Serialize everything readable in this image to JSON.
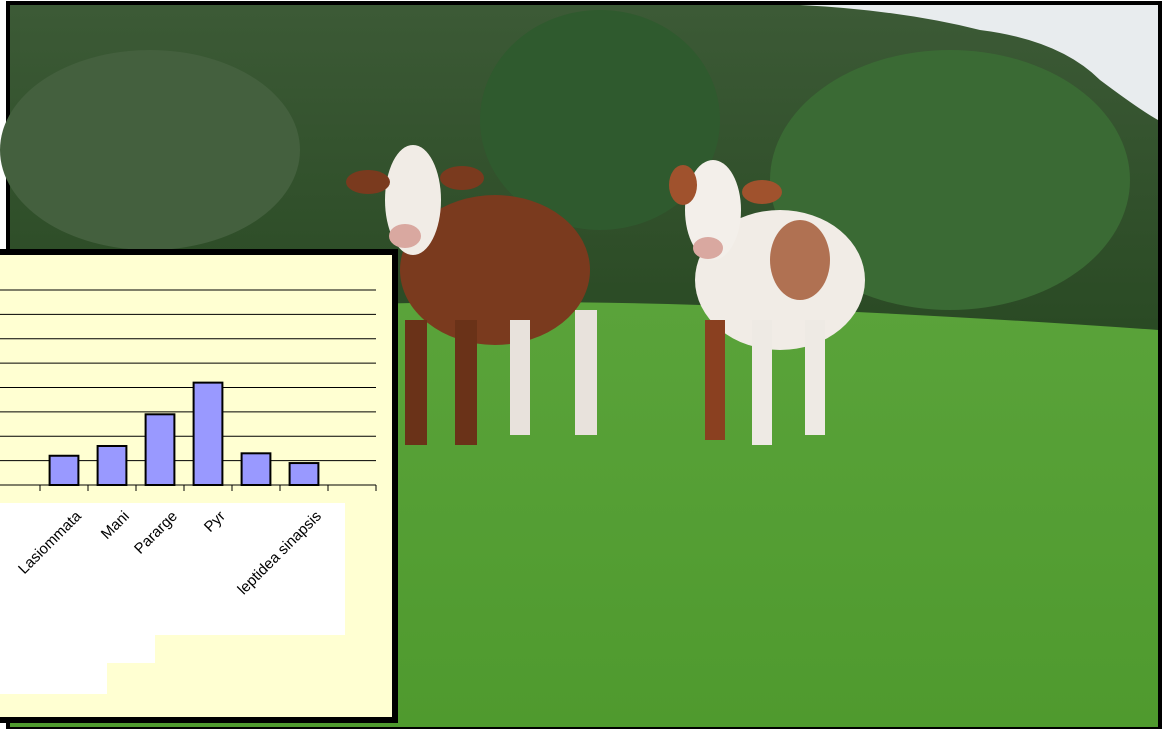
{
  "chart_data": {
    "type": "bar",
    "categories": [
      "Lasiommata",
      "Mani",
      "Pararge",
      "Pyr",
      null,
      "leptidea sinapsis"
    ],
    "values": [
      1.2,
      1.6,
      2.9,
      4.2,
      1.3,
      0.9
    ],
    "color": "#9999ff",
    "ylim": [
      0,
      8
    ],
    "yticks": [
      0,
      1,
      2,
      3,
      4,
      5,
      6,
      7,
      8
    ],
    "grid": true
  }
}
